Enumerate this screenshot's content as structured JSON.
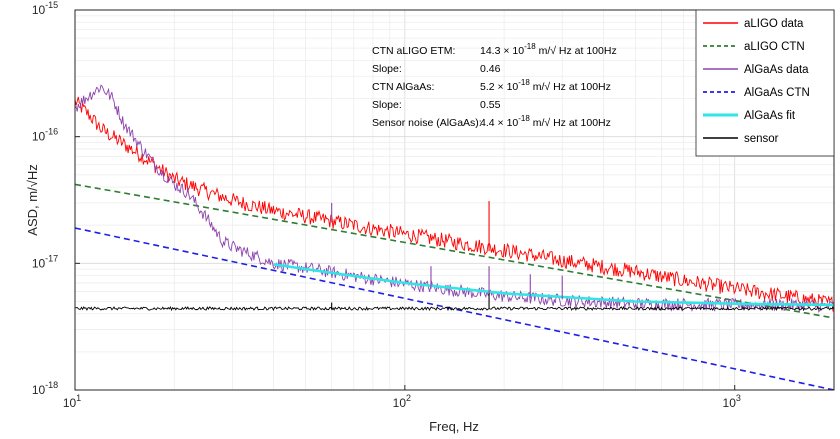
{
  "chart_data": {
    "type": "line",
    "xlabel": "Freq, Hz",
    "ylabel": "ASD, m/√Hz",
    "xscale": "log",
    "yscale": "log",
    "xlim": [
      10,
      2000
    ],
    "ylim": [
      1e-18,
      1e-15
    ],
    "xticks": [
      {
        "value": 10,
        "base": "10",
        "exp": "1"
      },
      {
        "value": 100,
        "base": "10",
        "exp": "2"
      },
      {
        "value": 1000,
        "base": "10",
        "exp": "3"
      }
    ],
    "yticks": [
      {
        "value": 1e-18,
        "base": "10",
        "exp": "-18"
      },
      {
        "value": 1e-17,
        "base": "10",
        "exp": "-17"
      },
      {
        "value": 1e-16,
        "base": "10",
        "exp": "-16"
      },
      {
        "value": 1e-15,
        "base": "10",
        "exp": "-15"
      }
    ],
    "grid": true,
    "legend_position": "top-right",
    "annotations": [
      {
        "label": "CTN aLIGO ETM:",
        "value_text": "14.3",
        "times": "× 10",
        "exp": "-18",
        "unit": " m/√ Hz at 100Hz"
      },
      {
        "label": "Slope:",
        "value_text": "0.46"
      },
      {
        "label": "CTN AlGaAs:",
        "value_text": "5.2",
        "times": "× 10",
        "exp": "-18",
        "unit": " m/√ Hz at 100Hz"
      },
      {
        "label": "Slope:",
        "value_text": "0.55"
      },
      {
        "label": "Sensor noise (AlGaAs):",
        "value_text": "4.4",
        "times": "× 10",
        "exp": "-18",
        "unit": " m/√ Hz at 100Hz"
      }
    ],
    "series": [
      {
        "name": "aLIGO data",
        "color": "#ff0000",
        "style": "solid",
        "noise": 0.06,
        "x": [
          10,
          11,
          12,
          13,
          14,
          16,
          18,
          20,
          25,
          30,
          40,
          50,
          60,
          80,
          100,
          150,
          200,
          300,
          500,
          700,
          1000,
          1500,
          2000
        ],
        "y": [
          1.9e-16,
          1.5e-16,
          1.15e-16,
          1e-16,
          8.8e-17,
          7e-17,
          5.6e-17,
          4.6e-17,
          3.7e-17,
          3.15e-17,
          2.6e-17,
          2.35e-17,
          2.15e-17,
          1.88e-17,
          1.7e-17,
          1.43e-17,
          1.27e-17,
          1.05e-17,
          8.6e-18,
          7.3e-18,
          6.3e-18,
          5.4e-18,
          4.8e-18
        ]
      },
      {
        "name": "aLIGO CTN",
        "color": "#2e7d32",
        "style": "dashed",
        "x": [
          10,
          2000
        ],
        "y": [
          4.2e-17,
          3.7e-18
        ]
      },
      {
        "name": "AlGaAs data",
        "color": "#8e44ad",
        "style": "solid",
        "noise": 0.05,
        "x": [
          10,
          11,
          12,
          13,
          14,
          16,
          18,
          20,
          22,
          25,
          28,
          30,
          35,
          40,
          50,
          60,
          80,
          100,
          150,
          200,
          300,
          500,
          1000,
          1500,
          2000
        ],
        "y": [
          1.7e-16,
          2.1e-16,
          2.5e-16,
          2e-16,
          1.3e-16,
          8e-17,
          5.5e-17,
          4.2e-17,
          3.6e-17,
          2.3e-17,
          1.5e-17,
          1.35e-17,
          1.15e-17,
          1e-17,
          9.2e-18,
          8.5e-18,
          7.5e-18,
          6.9e-18,
          6e-18,
          5.5e-18,
          5.1e-18,
          4.8e-18,
          4.7e-18,
          4.7e-18,
          4.6e-18
        ]
      },
      {
        "name": "AlGaAs CTN",
        "color": "#1f1fe6",
        "style": "dashed",
        "x": [
          10,
          2000
        ],
        "y": [
          1.9e-17,
          1e-18
        ]
      },
      {
        "name": "AlGaAs fit",
        "color": "#2ee6e6",
        "style": "solid-thick",
        "x": [
          40,
          60,
          100,
          200,
          500,
          1000,
          2000
        ],
        "y": [
          9.8e-18,
          8.4e-18,
          7e-18,
          5.8e-18,
          5e-18,
          4.8e-18,
          4.7e-18
        ]
      },
      {
        "name": "sensor",
        "color": "#000000",
        "style": "solid",
        "noise": 0.012,
        "x": [
          10,
          2000
        ],
        "y": [
          4.4e-18,
          4.4e-18
        ]
      }
    ],
    "spikes": [
      {
        "x": 60,
        "top": 3e-17,
        "base": 2.1e-17,
        "color": "#8e44ad"
      },
      {
        "x": 120,
        "top": 9.5e-18,
        "base": 6.3e-18,
        "color": "#8e44ad"
      },
      {
        "x": 180,
        "top": 3.1e-17,
        "base": 1.25e-17,
        "color": "#ff0000"
      },
      {
        "x": 180,
        "top": 9.5e-18,
        "base": 5.6e-18,
        "color": "#8e44ad"
      },
      {
        "x": 240,
        "top": 8.2e-18,
        "base": 5.3e-18,
        "color": "#8e44ad"
      },
      {
        "x": 300,
        "top": 8e-18,
        "base": 5.2e-18,
        "color": "#8e44ad"
      },
      {
        "x": 60,
        "top": 4.9e-18,
        "base": 4.4e-18,
        "color": "#000000"
      },
      {
        "x": 180,
        "top": 5.8e-18,
        "base": 4.4e-18,
        "color": "#000000"
      }
    ]
  }
}
